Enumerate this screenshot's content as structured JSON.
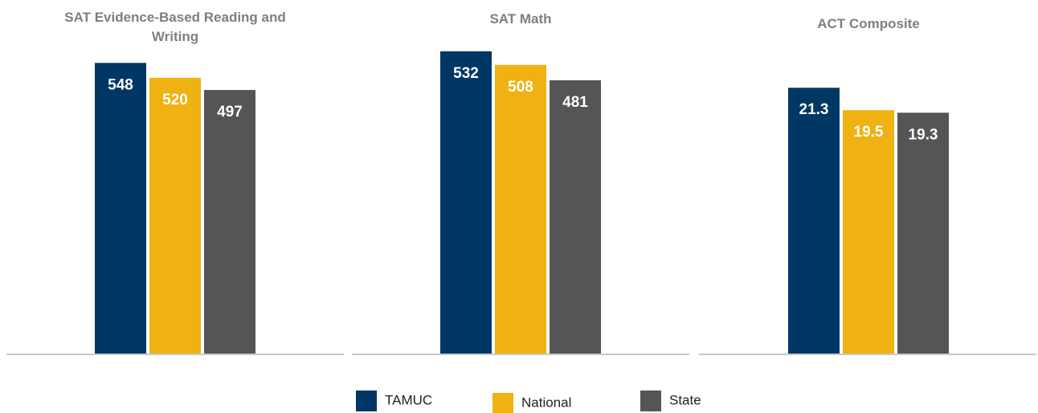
{
  "chart_data": [
    {
      "type": "bar",
      "title": "SAT Evidence-Based Reading and Writing",
      "values": [
        548,
        520,
        497
      ],
      "ylim": [
        0,
        600
      ]
    },
    {
      "type": "bar",
      "title": "SAT Math",
      "values": [
        532,
        508,
        481
      ],
      "ylim": [
        0,
        560
      ]
    },
    {
      "type": "bar",
      "title": "ACT Composite",
      "values": [
        21.3,
        19.5,
        19.3
      ],
      "ylim": [
        0,
        25.5
      ]
    }
  ],
  "legend": [
    {
      "name": "TAMUC",
      "color": "#003764"
    },
    {
      "name": "National",
      "color": "#f0b212"
    },
    {
      "name": "State",
      "color": "#535655"
    }
  ]
}
